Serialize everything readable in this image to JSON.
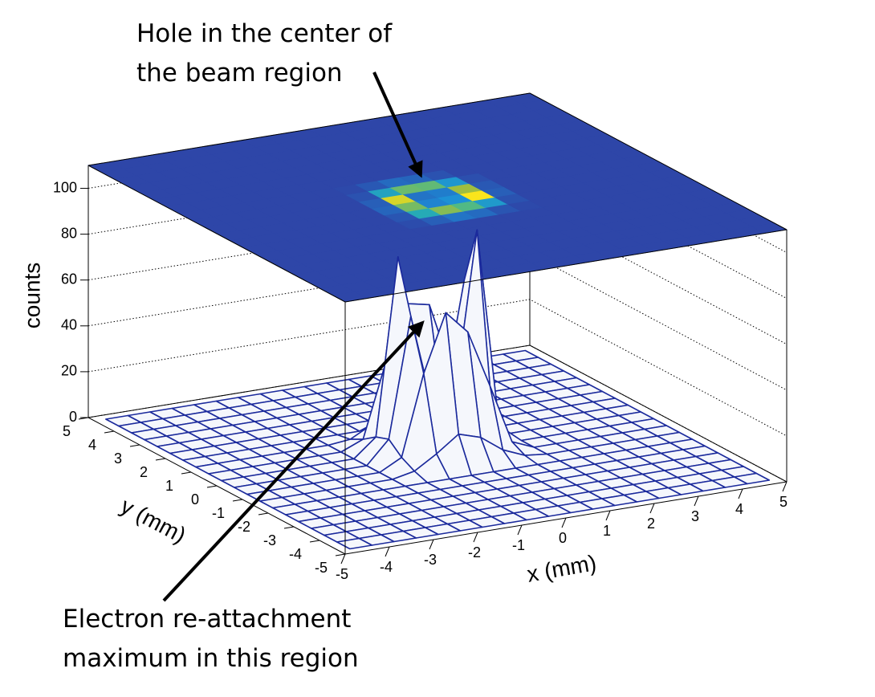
{
  "chart_data": {
    "type": "surface3d",
    "x_label": "x (mm)",
    "y_label": "y (mm)",
    "z_label": "counts",
    "xlim": [
      -5,
      5
    ],
    "ylim": [
      -5,
      5
    ],
    "zlim": [
      0,
      110
    ],
    "xticks": [
      -5,
      -4,
      -3,
      -2,
      -1,
      0,
      1,
      2,
      3,
      4,
      5
    ],
    "yticks": [
      -5,
      -4,
      -3,
      -2,
      -1,
      0,
      1,
      2,
      3,
      4,
      5
    ],
    "zticks": [
      0,
      20,
      40,
      60,
      80,
      100
    ],
    "grid": true,
    "mesh_color": "#1b2a9c",
    "colormap": [
      "#2e46a8",
      "#1c8fd8",
      "#2ab7a6",
      "#a6be3a",
      "#f9e51c"
    ],
    "z": [
      [
        0,
        0,
        0,
        0,
        0,
        0,
        0,
        0,
        0,
        0,
        0,
        0,
        0,
        0,
        0,
        0,
        0,
        0,
        0,
        0
      ],
      [
        0,
        0,
        0,
        0,
        0,
        0,
        0,
        0,
        0,
        0,
        0,
        0,
        0,
        0,
        0,
        0,
        0,
        0,
        0,
        0
      ],
      [
        0,
        0,
        0,
        0,
        0,
        0,
        0,
        0,
        0,
        0,
        0,
        0,
        0,
        0,
        0,
        0,
        0,
        0,
        0,
        0
      ],
      [
        0,
        0,
        0,
        0,
        0,
        0,
        0,
        0,
        0,
        0,
        0,
        0,
        0,
        0,
        0,
        0,
        0,
        0,
        0,
        0
      ],
      [
        0,
        0,
        0,
        0,
        0,
        0,
        0,
        0,
        0,
        0,
        0,
        0,
        0,
        0,
        0,
        0,
        0,
        0,
        0,
        0
      ],
      [
        0,
        0,
        0,
        0,
        0,
        0,
        0,
        0,
        0,
        0,
        0,
        0,
        0,
        0,
        0,
        0,
        0,
        0,
        0,
        0
      ],
      [
        0,
        0,
        0,
        0,
        0,
        0,
        0,
        0,
        0,
        0,
        0,
        0,
        0,
        0,
        0,
        0,
        0,
        0,
        0,
        0
      ],
      [
        0,
        0,
        0,
        0,
        0,
        0,
        0,
        2,
        8,
        15,
        12,
        5,
        1,
        0,
        0,
        0,
        0,
        0,
        0,
        0
      ],
      [
        0,
        0,
        0,
        0,
        0,
        0,
        0,
        5,
        40,
        65,
        55,
        30,
        4,
        0,
        0,
        0,
        0,
        0,
        0,
        0
      ],
      [
        0,
        0,
        0,
        0,
        0,
        0,
        0,
        10,
        62,
        20,
        25,
        95,
        8,
        0,
        0,
        0,
        0,
        0,
        0,
        0
      ],
      [
        0,
        0,
        0,
        0,
        0,
        0,
        0,
        8,
        85,
        15,
        18,
        70,
        6,
        0,
        0,
        0,
        0,
        0,
        0,
        0
      ],
      [
        0,
        0,
        0,
        0,
        0,
        0,
        0,
        4,
        35,
        60,
        58,
        28,
        3,
        0,
        0,
        0,
        0,
        0,
        0,
        0
      ],
      [
        0,
        0,
        0,
        0,
        0,
        0,
        0,
        1,
        6,
        12,
        10,
        4,
        0,
        0,
        0,
        0,
        0,
        0,
        0,
        0
      ],
      [
        0,
        0,
        0,
        0,
        0,
        0,
        0,
        0,
        0,
        0,
        0,
        0,
        0,
        0,
        0,
        0,
        0,
        0,
        0,
        0
      ],
      [
        0,
        0,
        0,
        0,
        0,
        0,
        0,
        0,
        0,
        0,
        0,
        0,
        0,
        0,
        0,
        0,
        0,
        0,
        0,
        0
      ],
      [
        0,
        0,
        0,
        0,
        0,
        0,
        0,
        0,
        0,
        0,
        0,
        0,
        0,
        0,
        0,
        0,
        0,
        0,
        0,
        0
      ],
      [
        0,
        0,
        0,
        0,
        0,
        0,
        0,
        0,
        0,
        0,
        0,
        0,
        0,
        0,
        0,
        0,
        0,
        0,
        0,
        0
      ],
      [
        0,
        0,
        0,
        0,
        0,
        0,
        0,
        0,
        0,
        0,
        0,
        0,
        0,
        0,
        0,
        0,
        0,
        0,
        0,
        0
      ],
      [
        0,
        0,
        0,
        0,
        0,
        0,
        0,
        0,
        0,
        0,
        0,
        0,
        0,
        0,
        0,
        0,
        0,
        0,
        0,
        0
      ],
      [
        0,
        0,
        0,
        0,
        0,
        0,
        0,
        0,
        0,
        0,
        0,
        0,
        0,
        0,
        0,
        0,
        0,
        0,
        0,
        0
      ]
    ],
    "annotations": [
      {
        "text": [
          "Hole in the center of",
          "the beam region"
        ]
      },
      {
        "text": [
          "Electron re-attachment",
          "maximum in this region"
        ]
      }
    ]
  }
}
